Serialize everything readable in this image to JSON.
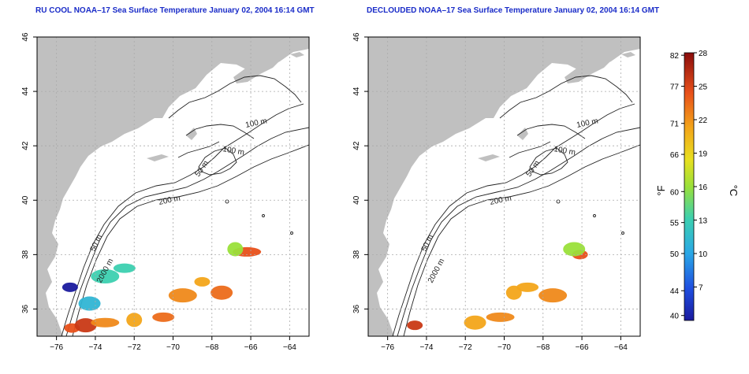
{
  "titles": {
    "left": "RU COOL NOAA–17 Sea Surface Temperature January 02, 2004 16:14 GMT",
    "right": "DECLOUDED NOAA–17 Sea Surface Temperature January 02, 2004 16:14 GMT"
  },
  "contour_labels": {
    "m100": "100 m",
    "m50": "50 m",
    "m200": "200 m",
    "m2000": "2000 m"
  },
  "colorbar": {
    "f_label": "°F",
    "c_label": "°C",
    "f_ticks": [
      "82",
      "77",
      "71",
      "66",
      "60",
      "55",
      "50",
      "44",
      "40"
    ],
    "c_ticks": [
      "28",
      "25",
      "22",
      "19",
      "16",
      "13",
      "10",
      "7"
    ]
  },
  "colors": {
    "land": "#c0c0c0",
    "ocean": "#ffffff",
    "title": "#1a2cc8",
    "grid": "#aaaaaa"
  },
  "chart_data": [
    {
      "type": "heatmap",
      "title": "RU COOL NOAA–17 Sea Surface Temperature January 02, 2004 16:14 GMT",
      "x_ticks": [
        -76,
        -74,
        -72,
        -70,
        -68,
        -66,
        -64
      ],
      "y_ticks": [
        36,
        38,
        40,
        42,
        44,
        46
      ],
      "xlim": [
        -77,
        -63
      ],
      "ylim": [
        35,
        46
      ],
      "grid": true,
      "value_unit": "°C",
      "value_range": [
        4,
        28
      ],
      "patches": [
        {
          "lon": -75.2,
          "lat": 35.3,
          "temp": 25
        },
        {
          "lon": -74.5,
          "lat": 35.4,
          "temp": 26
        },
        {
          "lon": -73.5,
          "lat": 35.5,
          "temp": 23
        },
        {
          "lon": -72.0,
          "lat": 35.6,
          "temp": 22
        },
        {
          "lon": -70.5,
          "lat": 35.7,
          "temp": 24
        },
        {
          "lon": -69.5,
          "lat": 36.5,
          "temp": 23
        },
        {
          "lon": -68.5,
          "lat": 37.0,
          "temp": 22
        },
        {
          "lon": -67.5,
          "lat": 36.6,
          "temp": 24
        },
        {
          "lon": -66.2,
          "lat": 38.1,
          "temp": 25
        },
        {
          "lon": -66.8,
          "lat": 38.2,
          "temp": 16
        },
        {
          "lon": -72.5,
          "lat": 37.5,
          "temp": 13
        },
        {
          "lon": -73.5,
          "lat": 37.2,
          "temp": 13
        },
        {
          "lon": -75.3,
          "lat": 36.8,
          "temp": 4
        },
        {
          "lon": -74.3,
          "lat": 36.2,
          "temp": 11
        }
      ]
    },
    {
      "type": "heatmap",
      "title": "DECLOUDED NOAA–17 Sea Surface Temperature January 02, 2004 16:14 GMT",
      "x_ticks": [
        -76,
        -74,
        -72,
        -70,
        -68,
        -66,
        -64
      ],
      "y_ticks": [
        36,
        38,
        40,
        42,
        44,
        46
      ],
      "xlim": [
        -77,
        -63
      ],
      "ylim": [
        35,
        46
      ],
      "grid": true,
      "value_unit": "°C",
      "value_range": [
        4,
        28
      ],
      "patches": [
        {
          "lon": -74.6,
          "lat": 35.4,
          "temp": 26
        },
        {
          "lon": -71.5,
          "lat": 35.5,
          "temp": 22
        },
        {
          "lon": -70.2,
          "lat": 35.7,
          "temp": 23
        },
        {
          "lon": -69.5,
          "lat": 36.6,
          "temp": 22
        },
        {
          "lon": -68.8,
          "lat": 36.8,
          "temp": 22
        },
        {
          "lon": -67.5,
          "lat": 36.5,
          "temp": 23
        },
        {
          "lon": -66.1,
          "lat": 38.0,
          "temp": 25
        },
        {
          "lon": -66.4,
          "lat": 38.2,
          "temp": 16
        }
      ]
    }
  ]
}
